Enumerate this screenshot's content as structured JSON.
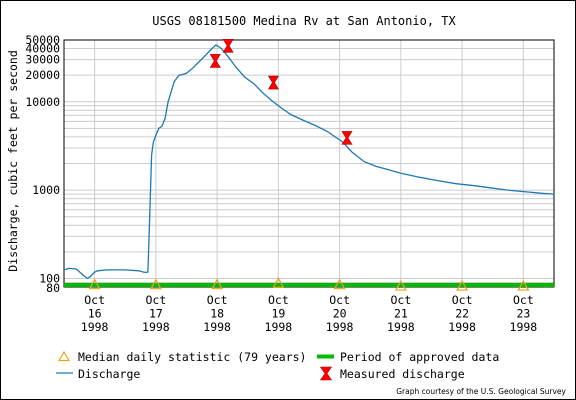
{
  "chart_data": {
    "type": "line",
    "title": "USGS 08181500 Medina Rv at San Antonio, TX",
    "ylabel": "Discharge, cubic feet per second",
    "xlabel": "",
    "yscale": "log",
    "ylim": [
      80,
      50000
    ],
    "xlim_days": [
      15.5,
      23.5
    ],
    "grid": true,
    "y_ticks": [
      {
        "value": 80,
        "label": "80"
      },
      {
        "value": 100,
        "label": "100"
      },
      {
        "value": 1000,
        "label": "1000"
      },
      {
        "value": 10000,
        "label": "10000"
      },
      {
        "value": 20000,
        "label": "20000"
      },
      {
        "value": 30000,
        "label": "30000"
      },
      {
        "value": 40000,
        "label": "40000"
      },
      {
        "value": 50000,
        "label": "50000"
      }
    ],
    "x_ticks": [
      {
        "value": 16,
        "label": [
          "Oct",
          "16",
          "1998"
        ]
      },
      {
        "value": 17,
        "label": [
          "Oct",
          "17",
          "1998"
        ]
      },
      {
        "value": 18,
        "label": [
          "Oct",
          "18",
          "1998"
        ]
      },
      {
        "value": 19,
        "label": [
          "Oct",
          "19",
          "1998"
        ]
      },
      {
        "value": 20,
        "label": [
          "Oct",
          "20",
          "1998"
        ]
      },
      {
        "value": 21,
        "label": [
          "Oct",
          "21",
          "1998"
        ]
      },
      {
        "value": 22,
        "label": [
          "Oct",
          "22",
          "1998"
        ]
      },
      {
        "value": 23,
        "label": [
          "Oct",
          "23",
          "1998"
        ]
      }
    ],
    "series": [
      {
        "name": "Discharge",
        "color": "#1f77b4",
        "x": [
          15.5,
          15.58,
          15.7,
          15.82,
          15.88,
          15.93,
          16.0,
          16.05,
          16.2,
          16.5,
          16.72,
          16.8,
          16.84,
          16.87,
          16.9,
          16.93,
          16.96,
          17.0,
          17.05,
          17.1,
          17.15,
          17.2,
          17.3,
          17.38,
          17.45,
          17.5,
          17.6,
          17.72,
          17.8,
          17.9,
          17.98,
          18.05,
          18.12,
          18.2,
          18.3,
          18.45,
          18.6,
          18.75,
          18.9,
          19.05,
          19.2,
          19.4,
          19.6,
          19.8,
          19.95,
          20.05,
          20.2,
          20.4,
          20.6,
          20.8,
          21.0,
          21.3,
          21.6,
          21.9,
          22.2,
          22.5,
          22.8,
          23.1,
          23.3,
          23.5
        ],
        "values": [
          125,
          130,
          128,
          108,
          100,
          105,
          118,
          122,
          125,
          125,
          122,
          118,
          117,
          118,
          500,
          2500,
          3500,
          4200,
          5000,
          5300,
          6500,
          10000,
          17000,
          20000,
          20500,
          21000,
          24000,
          29000,
          33000,
          39000,
          44000,
          41000,
          36500,
          31000,
          25000,
          19000,
          16000,
          12500,
          10200,
          8500,
          7200,
          6200,
          5400,
          4600,
          3900,
          3500,
          2700,
          2100,
          1850,
          1700,
          1550,
          1400,
          1280,
          1180,
          1120,
          1050,
          990,
          950,
          920,
          900
        ]
      },
      {
        "name": "Median daily statistic (79 years)",
        "color": "#e8a317",
        "x": [
          16,
          17,
          18,
          19,
          20,
          21,
          22,
          23
        ],
        "values": [
          85,
          85,
          85,
          88,
          85,
          82,
          82,
          82
        ]
      },
      {
        "name": "Measured discharge",
        "color": "#ff0000",
        "x": [
          17.97,
          18.18,
          18.92,
          20.12
        ],
        "values": [
          29000,
          43000,
          16500,
          3900
        ]
      },
      {
        "name": "Period of approved data",
        "color": "#00bb00",
        "x": [
          15.5,
          23.5
        ],
        "values": [
          80,
          80
        ]
      }
    ],
    "legend": {
      "placement": "bottom",
      "items": [
        {
          "label": "Median daily statistic (79 years)",
          "symbol": "triangle",
          "color": "#e8a317"
        },
        {
          "label": "Period of approved data",
          "symbol": "thick-line",
          "color": "#00bb00"
        },
        {
          "label": "Discharge",
          "symbol": "line",
          "color": "#1f77b4"
        },
        {
          "label": "Measured discharge",
          "symbol": "bowtie",
          "color": "#ff0000"
        }
      ]
    }
  },
  "credit": "Graph courtesy of the U.S. Geological Survey"
}
